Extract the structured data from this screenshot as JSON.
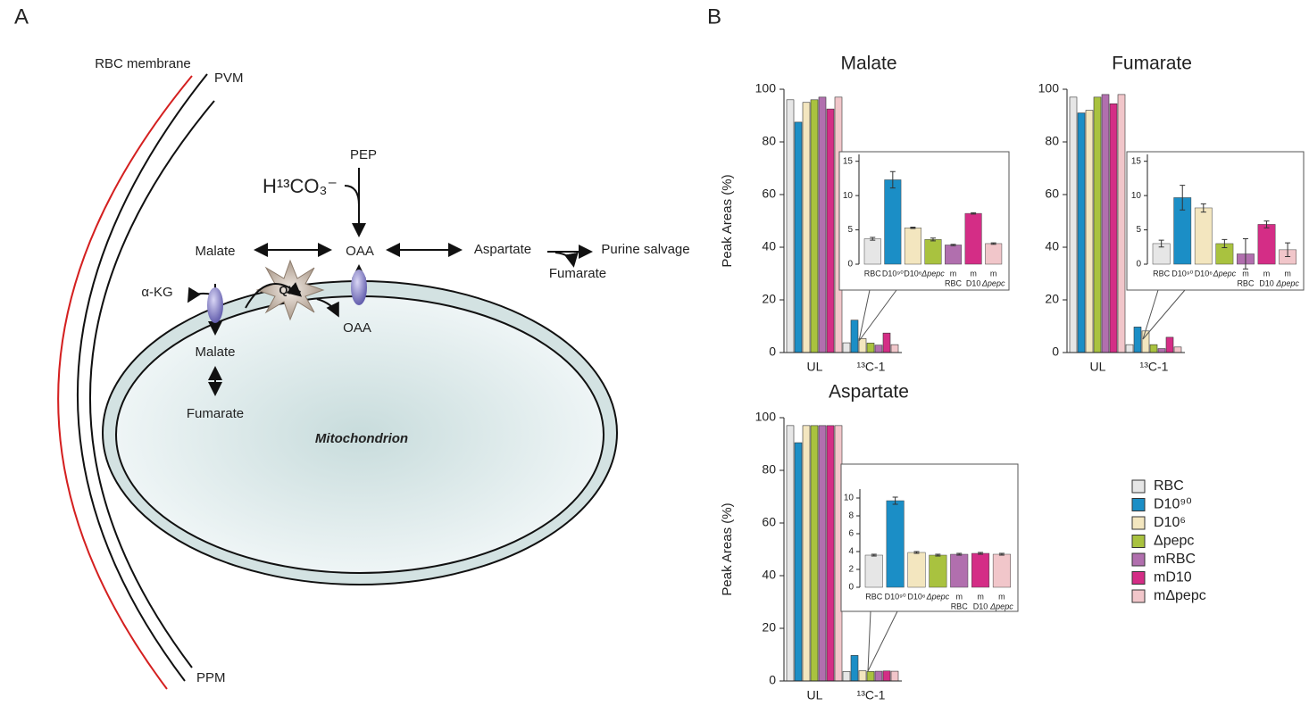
{
  "panel_a": {
    "label": "A",
    "labels": [
      "RBC membrane",
      "PVM",
      "PEP",
      "H¹³CO₃⁻",
      "Malate",
      "OAA",
      "Aspartate",
      "Purine salvage",
      "Fumarate",
      "α-KG",
      "QH₂",
      "OAA",
      "Malate",
      "Fumarate",
      "Mitochondrion",
      "PPM"
    ]
  },
  "panel_b": {
    "label": "B"
  },
  "legend": [
    {
      "name": "RBC",
      "color": "#e6e6e6"
    },
    {
      "name": "D10⁹⁰",
      "color": "#1b8ec6"
    },
    {
      "name": "D10⁶",
      "color": "#f3e6bf"
    },
    {
      "name": "Δpepc",
      "color": "#a9c23f"
    },
    {
      "name": "mRBC",
      "color": "#b16fae"
    },
    {
      "name": "mD10",
      "color": "#d42d86"
    },
    {
      "name": "mΔpepc",
      "color": "#f1c6ca"
    }
  ],
  "chart_data": [
    {
      "type": "bar",
      "title": "Malate",
      "y_label": "Peak Areas (%)",
      "categories": [
        "UL",
        "¹³C-1"
      ],
      "ylim": [
        0,
        100
      ],
      "yticks": [
        0,
        20,
        40,
        60,
        80,
        100
      ],
      "series": [
        {
          "values": [
            96,
            3.7
          ]
        },
        {
          "values": [
            87.5,
            12.3
          ]
        },
        {
          "values": [
            95,
            5.3
          ]
        },
        {
          "values": [
            96,
            3.6
          ]
        },
        {
          "values": [
            97,
            2.8
          ]
        },
        {
          "values": [
            92.5,
            7.4
          ]
        },
        {
          "values": [
            97,
            3.0
          ]
        }
      ],
      "inset": {
        "categories": [
          [
            "RBC"
          ],
          [
            "D10⁹⁰"
          ],
          [
            "D10⁶"
          ],
          [
            "Δpepc"
          ],
          [
            "m",
            "RBC"
          ],
          [
            "m",
            "D10"
          ],
          [
            "m",
            "Δpepc"
          ]
        ],
        "ylim": [
          0,
          16
        ],
        "yticks": [
          0,
          5,
          10,
          15
        ],
        "errors": [
          0.2,
          1.2,
          0.1,
          0.2,
          0.1,
          0.1,
          0.1
        ]
      }
    },
    {
      "type": "bar",
      "title": "Fumarate",
      "categories": [
        "UL",
        "¹³C-1"
      ],
      "ylim": [
        0,
        100
      ],
      "yticks": [
        0,
        20,
        40,
        60,
        80,
        100
      ],
      "series": [
        {
          "values": [
            97,
            3.0
          ]
        },
        {
          "values": [
            91,
            9.7
          ]
        },
        {
          "values": [
            92,
            8.2
          ]
        },
        {
          "values": [
            97,
            3.0
          ]
        },
        {
          "values": [
            98,
            1.5
          ]
        },
        {
          "values": [
            94.5,
            5.8
          ]
        },
        {
          "values": [
            98,
            2.1
          ]
        }
      ],
      "inset": {
        "categories": [
          [
            "RBC"
          ],
          [
            "D10⁹⁰"
          ],
          [
            "D10⁶"
          ],
          [
            "Δpepc"
          ],
          [
            "m",
            "RBC"
          ],
          [
            "m",
            "D10"
          ],
          [
            "m",
            "Δpepc"
          ]
        ],
        "ylim": [
          0,
          16
        ],
        "yticks": [
          0,
          5,
          10,
          15
        ],
        "errors": [
          0.5,
          1.8,
          0.6,
          0.6,
          2.2,
          0.5,
          1.0
        ]
      }
    },
    {
      "type": "bar",
      "title": "Aspartate",
      "y_label": "Peak Areas (%)",
      "categories": [
        "UL",
        "¹³C-1"
      ],
      "ylim": [
        0,
        100
      ],
      "yticks": [
        0,
        20,
        40,
        60,
        80,
        100
      ],
      "series": [
        {
          "values": [
            97,
            3.6
          ]
        },
        {
          "values": [
            90.5,
            9.7
          ]
        },
        {
          "values": [
            97,
            3.9
          ]
        },
        {
          "values": [
            97,
            3.6
          ]
        },
        {
          "values": [
            97,
            3.7
          ]
        },
        {
          "values": [
            97,
            3.8
          ]
        },
        {
          "values": [
            97,
            3.7
          ]
        }
      ],
      "inset": {
        "categories": [
          [
            "RBC"
          ],
          [
            "D10⁹⁰"
          ],
          [
            "D10⁶"
          ],
          [
            "Δpepc"
          ],
          [
            "m",
            "RBC"
          ],
          [
            "m",
            "D10"
          ],
          [
            "m",
            "Δpepc"
          ]
        ],
        "ylim": [
          0,
          11
        ],
        "yticks": [
          0,
          2,
          4,
          6,
          8,
          10
        ],
        "errors": [
          0.1,
          0.4,
          0.1,
          0.1,
          0.1,
          0.1,
          0.1
        ]
      }
    }
  ]
}
